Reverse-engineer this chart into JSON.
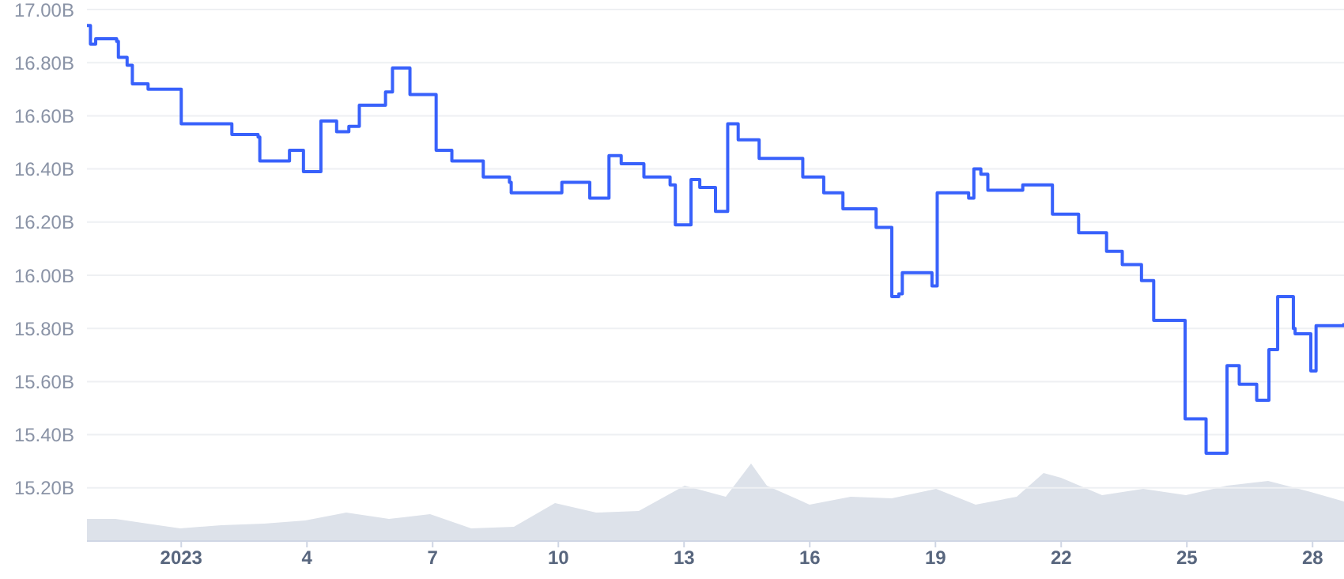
{
  "chart_data": {
    "type": "step",
    "xlim": [
      "2022-12-29T18:00",
      "2023-01-28T18:00"
    ],
    "xticks": [
      {
        "value": "2023-01-01",
        "label": "2023"
      },
      {
        "value": "2023-01-04",
        "label": "4"
      },
      {
        "value": "2023-01-07",
        "label": "7"
      },
      {
        "value": "2023-01-10",
        "label": "10"
      },
      {
        "value": "2023-01-13",
        "label": "13"
      },
      {
        "value": "2023-01-16",
        "label": "16"
      },
      {
        "value": "2023-01-19",
        "label": "19"
      },
      {
        "value": "2023-01-22",
        "label": "22"
      },
      {
        "value": "2023-01-25",
        "label": "25"
      },
      {
        "value": "2023-01-28",
        "label": "28"
      }
    ],
    "ylim": [
      15.0,
      17.0
    ],
    "yticks": [
      {
        "value": 15.2,
        "label": "15.20B"
      },
      {
        "value": 15.4,
        "label": "15.40B"
      },
      {
        "value": 15.6,
        "label": "15.60B"
      },
      {
        "value": 15.8,
        "label": "15.80B"
      },
      {
        "value": 16.0,
        "label": "16.00B"
      },
      {
        "value": 16.2,
        "label": "16.20B"
      },
      {
        "value": 16.4,
        "label": "16.40B"
      },
      {
        "value": 16.6,
        "label": "16.60B"
      },
      {
        "value": 16.8,
        "label": "16.80B"
      },
      {
        "value": 17.0,
        "label": "17.00B"
      }
    ],
    "grid": "y",
    "marker": "none",
    "line_style": "solid",
    "tick_labels": "xy",
    "series": [
      {
        "color": "#3861fb",
        "x": [
          "2022-12-29T18:00",
          "2022-12-29T20:00",
          "2022-12-29T23:00",
          "2022-12-30T11:00",
          "2022-12-30T12:00",
          "2022-12-30T17:00",
          "2022-12-30T20:00",
          "2022-12-31T04:00",
          "2022-12-31T05:00",
          "2022-12-31T23:00",
          "2023-01-01T00:00",
          "2023-01-02T02:00",
          "2023-01-02T05:00",
          "2023-01-02T20:00",
          "2023-01-02T21:00",
          "2023-01-03T13:00",
          "2023-01-03T14:00",
          "2023-01-03T20:00",
          "2023-01-03T22:00",
          "2023-01-04T07:00",
          "2023-01-04T08:00",
          "2023-01-04T16:00",
          "2023-01-04T17:00",
          "2023-01-04T22:00",
          "2023-01-05T00:00",
          "2023-01-05T05:00",
          "2023-01-05T06:00",
          "2023-01-05T20:00",
          "2023-01-05T21:00",
          "2023-01-06T00:00",
          "2023-01-06T01:00",
          "2023-01-06T09:00",
          "2023-01-06T11:00",
          "2023-01-07T00:00",
          "2023-01-07T02:00",
          "2023-01-07T09:00",
          "2023-01-07T11:00",
          "2023-01-08T03:00",
          "2023-01-08T05:00",
          "2023-01-08T15:00",
          "2023-01-08T20:00",
          "2023-01-08T21:00",
          "2023-01-10T00:00",
          "2023-01-10T02:00",
          "2023-01-10T17:00",
          "2023-01-10T18:00",
          "2023-01-11T03:00",
          "2023-01-11T05:00",
          "2023-01-11T12:00",
          "2023-01-11T21:00",
          "2023-01-12T01:00",
          "2023-01-12T14:00",
          "2023-01-12T16:00",
          "2023-01-12T18:00",
          "2023-01-12T19:00",
          "2023-01-13T03:00",
          "2023-01-13T04:00",
          "2023-01-13T09:00",
          "2023-01-13T17:00",
          "2023-01-13T18:00",
          "2023-01-13T23:00",
          "2023-01-14T01:00",
          "2023-01-14T05:00",
          "2023-01-14T07:00",
          "2023-01-14T17:00",
          "2023-01-14T19:00",
          "2023-01-15T18:00",
          "2023-01-15T20:00",
          "2023-01-16T07:00",
          "2023-01-16T08:00",
          "2023-01-16T18:00",
          "2023-01-16T19:00",
          "2023-01-17T13:00",
          "2023-01-17T14:00",
          "2023-01-17T22:00",
          "2023-01-17T23:00",
          "2023-01-18T03:00",
          "2023-01-18T05:00",
          "2023-01-18T21:00",
          "2023-01-18T22:00",
          "2023-01-19T00:00",
          "2023-01-19T01:00",
          "2023-01-19T17:00",
          "2023-01-19T19:00",
          "2023-01-19T22:00",
          "2023-01-20T02:00",
          "2023-01-20T06:00",
          "2023-01-20T23:00",
          "2023-01-21T02:00",
          "2023-01-21T16:00",
          "2023-01-21T19:00",
          "2023-01-22T09:00",
          "2023-01-22T10:00",
          "2023-01-23T00:00",
          "2023-01-23T02:00",
          "2023-01-23T09:00",
          "2023-01-23T11:00",
          "2023-01-23T20:00",
          "2023-01-23T22:00",
          "2023-01-24T03:00",
          "2023-01-24T05:00",
          "2023-01-24T22:00",
          "2023-01-24T23:00",
          "2023-01-25T10:00",
          "2023-01-25T11:00",
          "2023-01-25T21:00",
          "2023-01-25T23:00",
          "2023-01-26T04:00",
          "2023-01-26T06:00",
          "2023-01-26T14:00",
          "2023-01-26T16:00",
          "2023-01-26T20:00",
          "2023-01-26T23:00",
          "2023-01-27T03:00",
          "2023-01-27T04:00",
          "2023-01-27T09:00",
          "2023-01-27T13:00",
          "2023-01-27T14:00",
          "2023-01-27T22:00",
          "2023-01-27T23:00",
          "2023-01-28T02:00",
          "2023-01-28T18:00"
        ],
        "values": [
          16.94,
          16.87,
          16.89,
          16.88,
          16.82,
          16.79,
          16.72,
          16.72,
          16.7,
          16.7,
          16.57,
          16.57,
          16.53,
          16.52,
          16.43,
          16.43,
          16.47,
          16.47,
          16.39,
          16.39,
          16.58,
          16.58,
          16.54,
          16.54,
          16.56,
          16.56,
          16.64,
          16.64,
          16.69,
          16.69,
          16.78,
          16.78,
          16.68,
          16.68,
          16.47,
          16.47,
          16.43,
          16.43,
          16.37,
          16.37,
          16.35,
          16.31,
          16.31,
          16.35,
          16.35,
          16.29,
          16.29,
          16.45,
          16.42,
          16.42,
          16.37,
          16.37,
          16.34,
          16.34,
          16.19,
          16.19,
          16.36,
          16.33,
          16.33,
          16.24,
          16.24,
          16.57,
          16.57,
          16.51,
          16.51,
          16.44,
          16.44,
          16.37,
          16.37,
          16.31,
          16.31,
          16.25,
          16.25,
          16.18,
          16.18,
          15.92,
          15.93,
          16.01,
          16.01,
          15.96,
          15.96,
          16.31,
          16.31,
          16.29,
          16.4,
          16.38,
          16.32,
          16.32,
          16.34,
          16.34,
          16.23,
          16.23,
          16.16,
          16.16,
          16.09,
          16.09,
          16.04,
          16.04,
          15.98,
          15.98,
          15.83,
          15.83,
          15.46,
          15.46,
          15.33,
          15.33,
          15.66,
          15.66,
          15.59,
          15.59,
          15.53,
          15.53,
          15.72,
          15.72,
          15.92,
          15.92,
          15.8,
          15.78,
          15.78,
          15.64,
          15.81,
          15.82
        ]
      }
    ]
  }
}
